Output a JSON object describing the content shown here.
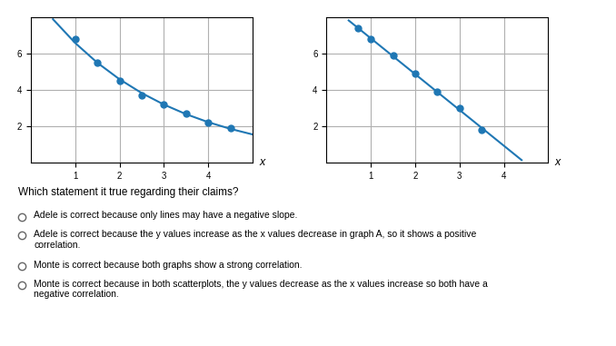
{
  "chart_data": [
    {
      "type": "scatter",
      "xlabel": "x",
      "xlim": [
        0,
        5
      ],
      "ylim": [
        0,
        8
      ],
      "xticks": [
        1,
        2,
        3,
        4
      ],
      "yticks": [
        2,
        4,
        6
      ],
      "grid": true,
      "series": [
        {
          "type": "line",
          "line_style": "solid",
          "x": [
            0.5,
            1.0,
            1.5,
            2.0,
            2.5,
            3.0,
            3.5,
            4.0,
            4.5,
            5.0
          ],
          "values": [
            7.8936,
            6.5882,
            5.4987,
            4.5894,
            3.8304,
            3.197,
            2.6683,
            2.227,
            1.8587,
            1.5513
          ]
        },
        {
          "type": "scatter",
          "marker": "o",
          "x": [
            1.0,
            1.5,
            2.0,
            2.5,
            3.0,
            3.5,
            4.0,
            4.5
          ],
          "values": [
            6.8,
            5.5,
            4.5,
            3.7,
            3.2,
            2.7,
            2.2,
            1.9
          ]
        }
      ]
    },
    {
      "type": "scatter",
      "xlabel": "x",
      "xlim": [
        0,
        5
      ],
      "ylim": [
        0,
        8
      ],
      "xticks": [
        1,
        2,
        3,
        4
      ],
      "yticks": [
        2,
        4,
        6
      ],
      "grid": true,
      "series": [
        {
          "type": "line",
          "line_style": "solid",
          "x": [
            0.5,
            4.4
          ],
          "values": [
            7.827309,
            0.139875
          ]
        },
        {
          "type": "scatter",
          "marker": "o",
          "x": [
            0.7,
            1.0,
            1.5,
            2.0,
            2.5,
            3.0,
            3.5
          ],
          "values": [
            7.4,
            6.8,
            5.9,
            4.9,
            3.9,
            3.0,
            1.8
          ]
        }
      ]
    }
  ],
  "annotations": [
    "Which statement it true regarding their claims?",
    "Adele is correct because only lines may have a negative slope.",
    "Adele is correct because the y values increase as the x values decrease in graph A, so it shows a positive\ncorrelation.",
    "Monte is correct because both graphs show a strong correlation.",
    "Monte is correct because in both scatterplots, the y values decrease as the x values increase so both have a\nnegative correlation."
  ]
}
